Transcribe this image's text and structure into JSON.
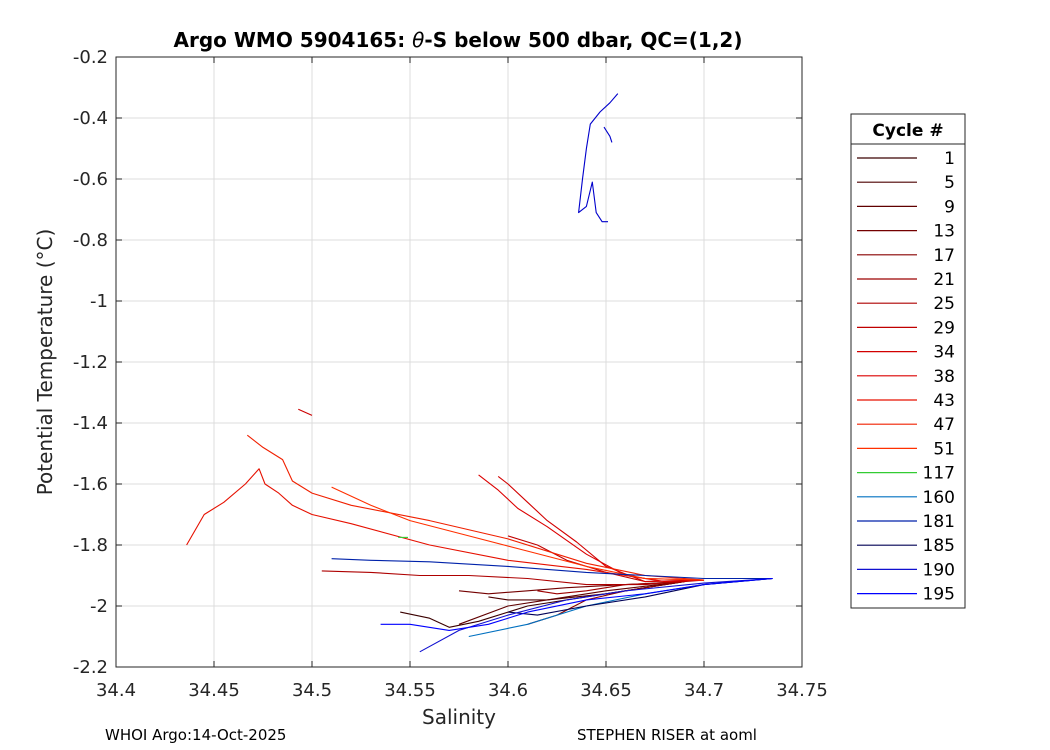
{
  "chart_data": {
    "type": "line",
    "title_main": "Argo WMO 5904165: ",
    "title_symbol": "θ",
    "title_rest": "-S below 500 dbar,  QC=(1,2)",
    "xlabel": "Salinity",
    "ylabel": "Potential Temperature (°C)",
    "xlim": [
      34.4,
      34.75
    ],
    "ylim": [
      -2.2,
      -0.2
    ],
    "xticks": [
      34.4,
      34.45,
      34.5,
      34.55,
      34.6,
      34.65,
      34.7,
      34.75
    ],
    "xtick_labels": [
      "34.4",
      "34.45",
      "34.5",
      "34.55",
      "34.6",
      "34.65",
      "34.7",
      "34.75"
    ],
    "yticks": [
      -0.2,
      -0.4,
      -0.6,
      -0.8,
      -1,
      -1.2,
      -1.4,
      -1.6,
      -1.8,
      -2,
      -2.2
    ],
    "ytick_labels": [
      "-0.2",
      "-0.4",
      "-0.6",
      "-0.8",
      "-1",
      "-1.2",
      "-1.4",
      "-1.6",
      "-1.8",
      "-2",
      "-2.2"
    ],
    "grid": true,
    "legend_title": "Cycle #",
    "legend_position": "right-outside",
    "series": [
      {
        "name": "1",
        "color": "#3a0000",
        "x": [
          34.69,
          34.65,
          34.61,
          34.585,
          34.57,
          34.56,
          34.545
        ],
        "y": [
          -1.92,
          -1.96,
          -2.0,
          -2.05,
          -2.07,
          -2.04,
          -2.02
        ]
      },
      {
        "name": "5",
        "color": "#4d0000",
        "x": [
          34.69,
          34.65,
          34.62,
          34.6,
          34.59
        ],
        "y": [
          -1.92,
          -1.96,
          -1.98,
          -1.98,
          -1.97
        ]
      },
      {
        "name": "9",
        "color": "#600000",
        "x": [
          34.69,
          34.65,
          34.62,
          34.6,
          34.575
        ],
        "y": [
          -1.92,
          -1.95,
          -1.98,
          -2.0,
          -2.06
        ]
      },
      {
        "name": "13",
        "color": "#740000",
        "x": [
          34.69,
          34.66,
          34.63,
          34.61,
          34.59,
          34.575
        ],
        "y": [
          -1.92,
          -1.93,
          -1.94,
          -1.95,
          -1.96,
          -1.95
        ]
      },
      {
        "name": "17",
        "color": "#880000",
        "x": [
          34.69,
          34.66,
          34.64,
          34.625,
          34.61
        ],
        "y": [
          -1.92,
          -1.95,
          -1.98,
          -2.03,
          -2.06
        ]
      },
      {
        "name": "21",
        "color": "#9c0000",
        "x": [
          34.69,
          34.66,
          34.64,
          34.625,
          34.615
        ],
        "y": [
          -1.92,
          -1.93,
          -1.95,
          -1.96,
          -1.95
        ]
      },
      {
        "name": "25",
        "color": "#ae0000",
        "x": [
          34.7,
          34.67,
          34.64,
          34.61,
          34.58,
          34.555,
          34.53,
          34.505
        ],
        "y": [
          -1.915,
          -1.93,
          -1.93,
          -1.91,
          -1.9,
          -1.9,
          -1.89,
          -1.885
        ]
      },
      {
        "name": "29",
        "color": "#c00000",
        "x": [
          34.7,
          34.67,
          34.65,
          34.63,
          34.615,
          34.6
        ],
        "y": [
          -1.915,
          -1.92,
          -1.89,
          -1.85,
          -1.8,
          -1.77
        ]
      },
      {
        "name": "34",
        "color": "#d20000",
        "x": [
          34.7,
          34.67,
          34.65,
          34.635,
          34.62,
          34.61,
          34.6,
          34.595
        ],
        "y": [
          -1.915,
          -1.92,
          -1.87,
          -1.79,
          -1.72,
          -1.66,
          -1.6,
          -1.575
        ]
      },
      {
        "name": "38",
        "color": "#dc0000",
        "x": [
          34.7,
          34.68,
          34.66,
          34.64,
          34.62,
          34.605,
          34.595,
          34.585
        ],
        "y": [
          -1.915,
          -1.92,
          -1.9,
          -1.83,
          -1.74,
          -1.68,
          -1.62,
          -1.57
        ]
      },
      {
        "name": "43",
        "color": "#e61000",
        "x": [
          34.7,
          34.67,
          34.64,
          34.6,
          34.56,
          34.52,
          34.5,
          34.49,
          34.483,
          34.476,
          34.473,
          34.466,
          34.455,
          34.445,
          34.436
        ],
        "y": [
          -1.915,
          -1.91,
          -1.88,
          -1.85,
          -1.8,
          -1.73,
          -1.7,
          -1.67,
          -1.63,
          -1.6,
          -1.55,
          -1.6,
          -1.66,
          -1.7,
          -1.8
        ]
      },
      {
        "name": "47",
        "color": "#f02000",
        "x": [
          34.7,
          34.67,
          34.64,
          34.6,
          34.56,
          34.52,
          34.5,
          34.49,
          34.485,
          34.475,
          34.467
        ],
        "y": [
          -1.915,
          -1.9,
          -1.86,
          -1.78,
          -1.72,
          -1.67,
          -1.63,
          -1.59,
          -1.52,
          -1.48,
          -1.44
        ]
      },
      {
        "name": "51",
        "color": "#ff3000",
        "x": [
          34.7,
          34.67,
          34.64,
          34.61,
          34.58,
          34.55,
          34.53,
          34.51
        ],
        "y": [
          -1.915,
          -1.91,
          -1.87,
          -1.82,
          -1.77,
          -1.72,
          -1.67,
          -1.61
        ]
      },
      {
        "name": "117",
        "color": "#33cc33",
        "x": [
          34.544,
          34.549
        ],
        "y": [
          -1.775,
          -1.775
        ]
      },
      {
        "name": "160",
        "color": "#0070c0",
        "x": [
          34.735,
          34.7,
          34.67,
          34.64,
          34.61,
          34.58
        ],
        "y": [
          -1.91,
          -1.93,
          -1.96,
          -2.0,
          -2.06,
          -2.1
        ]
      },
      {
        "name": "181",
        "color": "#0022aa",
        "x": [
          34.735,
          34.7,
          34.67,
          34.64,
          34.6,
          34.56,
          34.53,
          34.51
        ],
        "y": [
          -1.91,
          -1.91,
          -1.9,
          -1.89,
          -1.87,
          -1.855,
          -1.85,
          -1.845
        ]
      },
      {
        "name": "185",
        "color": "#000055",
        "x": [
          34.735,
          34.7,
          34.67,
          34.64,
          34.615,
          34.6
        ],
        "y": [
          -1.91,
          -1.93,
          -1.97,
          -2.0,
          -2.03,
          -2.02
        ]
      },
      {
        "name": "190",
        "color": "#1010d0",
        "x": [
          34.735,
          34.7,
          34.66,
          34.63,
          34.6,
          34.575,
          34.555
        ],
        "y": [
          -1.91,
          -1.925,
          -1.95,
          -1.98,
          -2.03,
          -2.08,
          -2.15
        ]
      },
      {
        "name": "195",
        "color": "#0000ff",
        "x": [
          34.735,
          34.7,
          34.67,
          34.64,
          34.61,
          34.59,
          34.57,
          34.55,
          34.535
        ],
        "y": [
          -1.91,
          -1.93,
          -1.96,
          -1.98,
          -2.02,
          -2.06,
          -2.08,
          -2.06,
          -2.06
        ]
      },
      {
        "name": "",
        "color": "#cc0000",
        "x": [
          34.493,
          34.5
        ],
        "y": [
          -1.355,
          -1.375
        ]
      },
      {
        "name": "",
        "color": "#0000cc",
        "x": [
          34.656,
          34.652,
          34.647,
          34.642,
          34.64,
          34.638,
          34.636,
          34.64,
          34.643,
          34.645,
          34.648,
          34.651
        ],
        "y": [
          -0.32,
          -0.35,
          -0.38,
          -0.42,
          -0.5,
          -0.6,
          -0.71,
          -0.69,
          -0.61,
          -0.71,
          -0.74,
          -0.74
        ]
      },
      {
        "name": "",
        "color": "#0000cc",
        "x": [
          34.649,
          34.652,
          34.653
        ],
        "y": [
          -0.43,
          -0.46,
          -0.48
        ]
      }
    ],
    "footer_left": "WHOI Argo:14-Oct-2025",
    "footer_right": "STEPHEN RISER at aoml"
  }
}
